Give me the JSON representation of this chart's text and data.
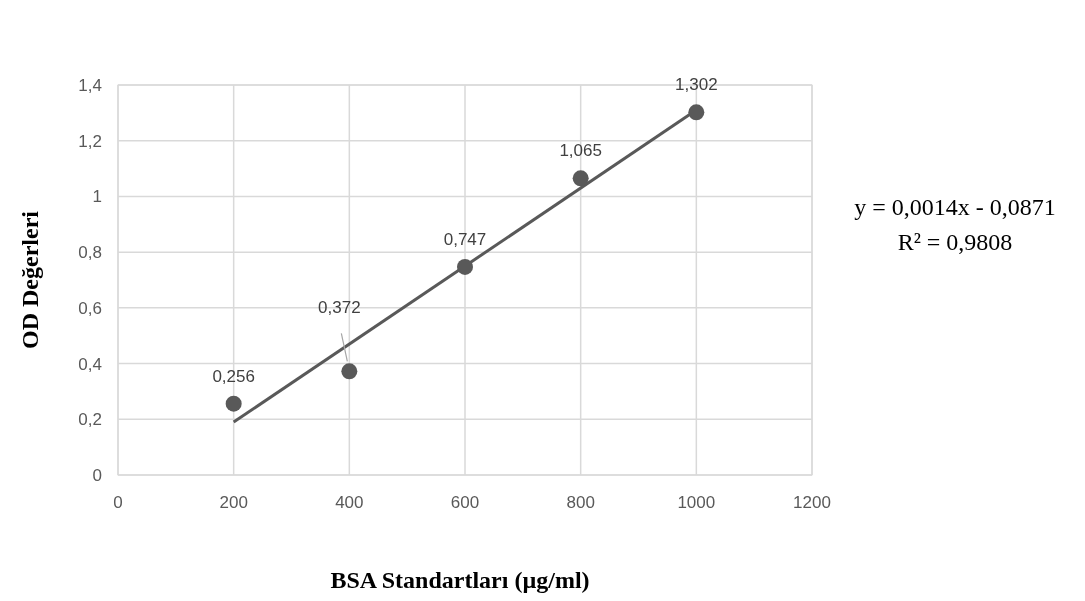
{
  "chart_data": {
    "type": "scatter",
    "xlabel": "BSA Standartları (µg/ml)",
    "ylabel": "OD Değerleri",
    "x": [
      200,
      400,
      600,
      800,
      1000
    ],
    "series": [
      {
        "marker": "circle",
        "color": "#595959",
        "values": [
          0.256,
          0.372,
          0.747,
          1.065,
          1.302
        ],
        "value_labels": [
          "0,256",
          "0,372",
          "0,747",
          "1,065",
          "1,302"
        ]
      },
      {
        "type": "line",
        "color": "#595959",
        "x": [
          200,
          1000
        ],
        "values": [
          0.19,
          1.31
        ]
      }
    ],
    "xlim": [
      0,
      1200
    ],
    "ylim": [
      0,
      1.4
    ],
    "xticks": [
      0,
      200,
      400,
      600,
      800,
      1000,
      1200
    ],
    "yticks": [
      0,
      {
        "value": 0.2,
        "label": "0,2"
      },
      {
        "value": 0.4,
        "label": "0,4"
      },
      {
        "value": 0.6,
        "label": "0,6"
      },
      {
        "value": 0.8,
        "label": "0,8"
      },
      1,
      {
        "value": 1.2,
        "label": "1,2"
      },
      {
        "value": 1.4,
        "label": "1,4"
      }
    ],
    "grid": true,
    "annotations": [
      "y = 0,0014x - 0,0871",
      "R² = 0,9808"
    ]
  }
}
